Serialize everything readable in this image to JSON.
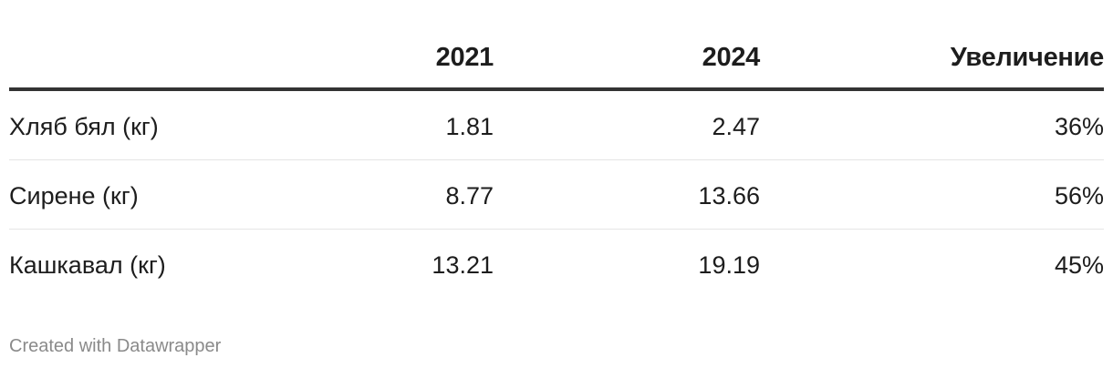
{
  "chart_data": {
    "type": "table",
    "columns": [
      "",
      "2021",
      "2024",
      "Увеличение"
    ],
    "rows": [
      {
        "label": "Хляб бял (кг)",
        "v2021": "1.81",
        "v2024": "2.47",
        "increase": "36%"
      },
      {
        "label": "Сирене (кг)",
        "v2021": "8.77",
        "v2024": "13.66",
        "increase": "56%"
      },
      {
        "label": "Кашкавал (кг)",
        "v2021": "13.21",
        "v2024": "19.19",
        "increase": "45%"
      }
    ]
  },
  "footer": {
    "credit": "Created with Datawrapper"
  }
}
